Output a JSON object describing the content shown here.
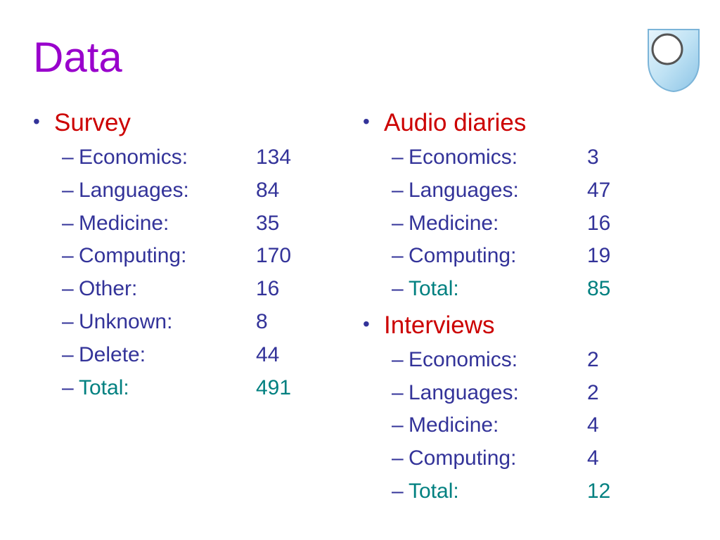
{
  "slide": {
    "title": "Data",
    "left_column": {
      "heading": "Survey",
      "items": [
        {
          "label": "Economics:",
          "value": "134"
        },
        {
          "label": "Languages:",
          "value": "84"
        },
        {
          "label": "Medicine:",
          "value": "35"
        },
        {
          "label": "Computing:",
          "value": "170"
        },
        {
          "label": "Other:",
          "value": "16"
        },
        {
          "label": "Unknown:",
          "value": "8"
        },
        {
          "label": "Delete:",
          "value": "44"
        },
        {
          "label": "Total:",
          "value": "491"
        }
      ]
    },
    "right_column": {
      "sections": [
        {
          "heading": "Audio diaries",
          "items": [
            {
              "label": "Economics:",
              "value": "3"
            },
            {
              "label": "Languages:",
              "value": "47"
            },
            {
              "label": "Medicine:",
              "value": "16"
            },
            {
              "label": "Computing:",
              "value": "19"
            },
            {
              "label": "Total:",
              "value": "85"
            }
          ]
        },
        {
          "heading": "Interviews",
          "items": [
            {
              "label": "Economics:",
              "value": "2"
            },
            {
              "label": "Languages:",
              "value": "2"
            },
            {
              "label": "Medicine:",
              "value": "4"
            },
            {
              "label": "Computing:",
              "value": "4"
            },
            {
              "label": "Total:",
              "value": "12"
            }
          ]
        }
      ]
    },
    "bullet_glyph": "•",
    "dash_glyph": "–",
    "colors": {
      "title": "#9900cc",
      "heading": "#cc0000",
      "body_text": "#333399",
      "total_text": "#008080",
      "logo_fill": "#a8d4ee"
    },
    "logo_icon": "shield-icon"
  }
}
